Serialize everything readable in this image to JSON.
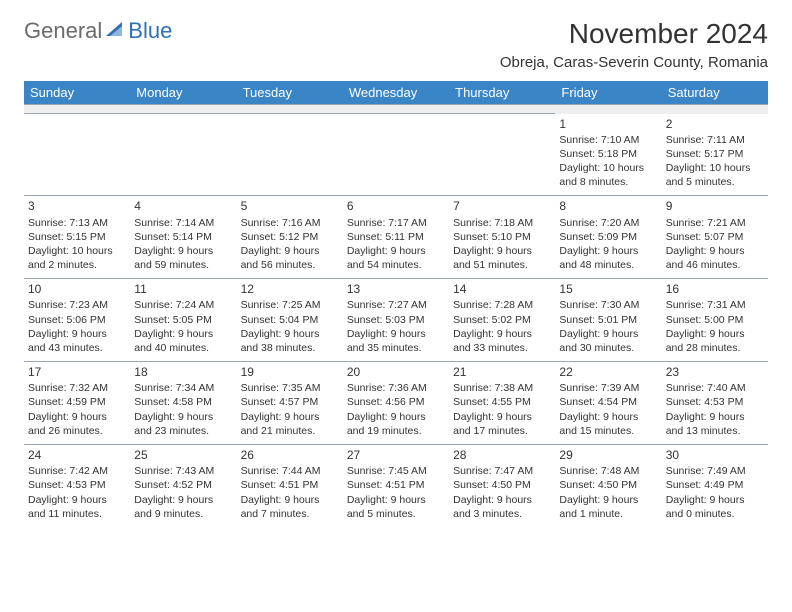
{
  "brand": {
    "part1": "General",
    "part2": "Blue"
  },
  "title": "November 2024",
  "location": "Obreja, Caras-Severin County, Romania",
  "colors": {
    "header_bg": "#3a85c6",
    "header_fg": "#ffffff",
    "spacer_bg": "#eeeeee",
    "border": "#9aa6b2",
    "brand_gray": "#6b6b6b",
    "brand_blue": "#2f6fb3"
  },
  "weekdays": [
    "Sunday",
    "Monday",
    "Tuesday",
    "Wednesday",
    "Thursday",
    "Friday",
    "Saturday"
  ],
  "weeks": [
    [
      null,
      null,
      null,
      null,
      null,
      {
        "d": "1",
        "sr": "Sunrise: 7:10 AM",
        "ss": "Sunset: 5:18 PM",
        "dl1": "Daylight: 10 hours",
        "dl2": "and 8 minutes."
      },
      {
        "d": "2",
        "sr": "Sunrise: 7:11 AM",
        "ss": "Sunset: 5:17 PM",
        "dl1": "Daylight: 10 hours",
        "dl2": "and 5 minutes."
      }
    ],
    [
      {
        "d": "3",
        "sr": "Sunrise: 7:13 AM",
        "ss": "Sunset: 5:15 PM",
        "dl1": "Daylight: 10 hours",
        "dl2": "and 2 minutes."
      },
      {
        "d": "4",
        "sr": "Sunrise: 7:14 AM",
        "ss": "Sunset: 5:14 PM",
        "dl1": "Daylight: 9 hours",
        "dl2": "and 59 minutes."
      },
      {
        "d": "5",
        "sr": "Sunrise: 7:16 AM",
        "ss": "Sunset: 5:12 PM",
        "dl1": "Daylight: 9 hours",
        "dl2": "and 56 minutes."
      },
      {
        "d": "6",
        "sr": "Sunrise: 7:17 AM",
        "ss": "Sunset: 5:11 PM",
        "dl1": "Daylight: 9 hours",
        "dl2": "and 54 minutes."
      },
      {
        "d": "7",
        "sr": "Sunrise: 7:18 AM",
        "ss": "Sunset: 5:10 PM",
        "dl1": "Daylight: 9 hours",
        "dl2": "and 51 minutes."
      },
      {
        "d": "8",
        "sr": "Sunrise: 7:20 AM",
        "ss": "Sunset: 5:09 PM",
        "dl1": "Daylight: 9 hours",
        "dl2": "and 48 minutes."
      },
      {
        "d": "9",
        "sr": "Sunrise: 7:21 AM",
        "ss": "Sunset: 5:07 PM",
        "dl1": "Daylight: 9 hours",
        "dl2": "and 46 minutes."
      }
    ],
    [
      {
        "d": "10",
        "sr": "Sunrise: 7:23 AM",
        "ss": "Sunset: 5:06 PM",
        "dl1": "Daylight: 9 hours",
        "dl2": "and 43 minutes."
      },
      {
        "d": "11",
        "sr": "Sunrise: 7:24 AM",
        "ss": "Sunset: 5:05 PM",
        "dl1": "Daylight: 9 hours",
        "dl2": "and 40 minutes."
      },
      {
        "d": "12",
        "sr": "Sunrise: 7:25 AM",
        "ss": "Sunset: 5:04 PM",
        "dl1": "Daylight: 9 hours",
        "dl2": "and 38 minutes."
      },
      {
        "d": "13",
        "sr": "Sunrise: 7:27 AM",
        "ss": "Sunset: 5:03 PM",
        "dl1": "Daylight: 9 hours",
        "dl2": "and 35 minutes."
      },
      {
        "d": "14",
        "sr": "Sunrise: 7:28 AM",
        "ss": "Sunset: 5:02 PM",
        "dl1": "Daylight: 9 hours",
        "dl2": "and 33 minutes."
      },
      {
        "d": "15",
        "sr": "Sunrise: 7:30 AM",
        "ss": "Sunset: 5:01 PM",
        "dl1": "Daylight: 9 hours",
        "dl2": "and 30 minutes."
      },
      {
        "d": "16",
        "sr": "Sunrise: 7:31 AM",
        "ss": "Sunset: 5:00 PM",
        "dl1": "Daylight: 9 hours",
        "dl2": "and 28 minutes."
      }
    ],
    [
      {
        "d": "17",
        "sr": "Sunrise: 7:32 AM",
        "ss": "Sunset: 4:59 PM",
        "dl1": "Daylight: 9 hours",
        "dl2": "and 26 minutes."
      },
      {
        "d": "18",
        "sr": "Sunrise: 7:34 AM",
        "ss": "Sunset: 4:58 PM",
        "dl1": "Daylight: 9 hours",
        "dl2": "and 23 minutes."
      },
      {
        "d": "19",
        "sr": "Sunrise: 7:35 AM",
        "ss": "Sunset: 4:57 PM",
        "dl1": "Daylight: 9 hours",
        "dl2": "and 21 minutes."
      },
      {
        "d": "20",
        "sr": "Sunrise: 7:36 AM",
        "ss": "Sunset: 4:56 PM",
        "dl1": "Daylight: 9 hours",
        "dl2": "and 19 minutes."
      },
      {
        "d": "21",
        "sr": "Sunrise: 7:38 AM",
        "ss": "Sunset: 4:55 PM",
        "dl1": "Daylight: 9 hours",
        "dl2": "and 17 minutes."
      },
      {
        "d": "22",
        "sr": "Sunrise: 7:39 AM",
        "ss": "Sunset: 4:54 PM",
        "dl1": "Daylight: 9 hours",
        "dl2": "and 15 minutes."
      },
      {
        "d": "23",
        "sr": "Sunrise: 7:40 AM",
        "ss": "Sunset: 4:53 PM",
        "dl1": "Daylight: 9 hours",
        "dl2": "and 13 minutes."
      }
    ],
    [
      {
        "d": "24",
        "sr": "Sunrise: 7:42 AM",
        "ss": "Sunset: 4:53 PM",
        "dl1": "Daylight: 9 hours",
        "dl2": "and 11 minutes."
      },
      {
        "d": "25",
        "sr": "Sunrise: 7:43 AM",
        "ss": "Sunset: 4:52 PM",
        "dl1": "Daylight: 9 hours",
        "dl2": "and 9 minutes."
      },
      {
        "d": "26",
        "sr": "Sunrise: 7:44 AM",
        "ss": "Sunset: 4:51 PM",
        "dl1": "Daylight: 9 hours",
        "dl2": "and 7 minutes."
      },
      {
        "d": "27",
        "sr": "Sunrise: 7:45 AM",
        "ss": "Sunset: 4:51 PM",
        "dl1": "Daylight: 9 hours",
        "dl2": "and 5 minutes."
      },
      {
        "d": "28",
        "sr": "Sunrise: 7:47 AM",
        "ss": "Sunset: 4:50 PM",
        "dl1": "Daylight: 9 hours",
        "dl2": "and 3 minutes."
      },
      {
        "d": "29",
        "sr": "Sunrise: 7:48 AM",
        "ss": "Sunset: 4:50 PM",
        "dl1": "Daylight: 9 hours",
        "dl2": "and 1 minute."
      },
      {
        "d": "30",
        "sr": "Sunrise: 7:49 AM",
        "ss": "Sunset: 4:49 PM",
        "dl1": "Daylight: 9 hours",
        "dl2": "and 0 minutes."
      }
    ]
  ]
}
